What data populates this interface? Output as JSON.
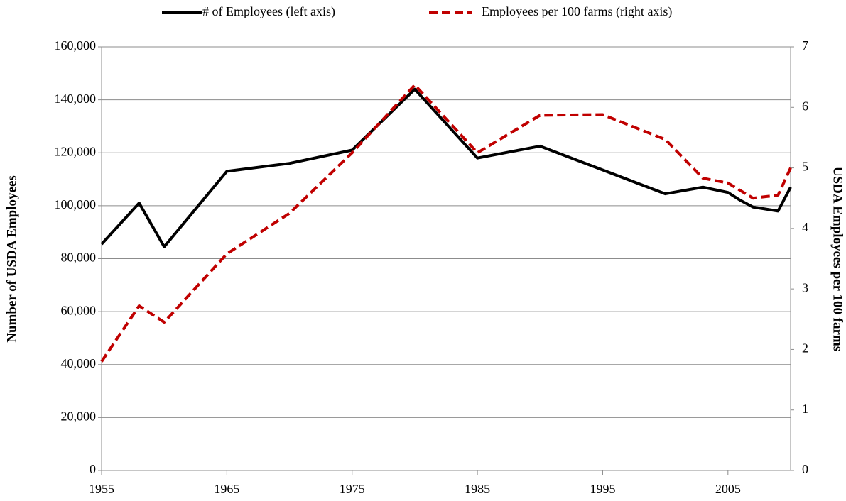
{
  "chart_data": {
    "type": "line",
    "xlabel": null,
    "ylabel": "Number of USDA Employees",
    "y2label": "USDA Employees per 100 farms",
    "xlim": [
      1955,
      2010
    ],
    "xticks": [
      1955,
      1965,
      1975,
      1985,
      1995,
      2005
    ],
    "ylim": [
      0,
      160000
    ],
    "yticks": [
      0,
      {
        "value": 20000,
        "label": "20,000"
      },
      {
        "value": 40000,
        "label": "40,000"
      },
      {
        "value": 60000,
        "label": "60,000"
      },
      {
        "value": 80000,
        "label": "80,000"
      },
      {
        "value": 100000,
        "label": "100,000"
      },
      {
        "value": 120000,
        "label": "120,000"
      },
      {
        "value": 140000,
        "label": "140,000"
      },
      {
        "value": 160000,
        "label": "160,000"
      }
    ],
    "y2lim": [
      0,
      7
    ],
    "y2ticks": [
      0,
      1,
      2,
      3,
      4,
      5,
      6,
      7
    ],
    "grid": true,
    "legend": "top",
    "series": [
      {
        "name": "# of Employees (left axis)",
        "color": "#000000",
        "axis": "y",
        "x": [
          1955,
          1958,
          1960,
          1965,
          1970,
          1975,
          1980,
          1985,
          1990,
          1995,
          2000,
          2003,
          2005,
          2006,
          2007,
          2009,
          2010
        ],
        "values": [
          85500,
          101000,
          84500,
          113000,
          116000,
          121000,
          144000,
          118000,
          122500,
          113500,
          104500,
          107000,
          105000,
          102000,
          99500,
          98000,
          107000
        ]
      },
      {
        "name": "Employees per 100 farms (right axis)",
        "color": "#c00000",
        "axis": "y2",
        "dashed": true,
        "x": [
          1955,
          1958,
          1960,
          1965,
          1970,
          1975,
          1980,
          1985,
          1990,
          1995,
          2000,
          2003,
          2005,
          2007,
          2009,
          2010
        ],
        "values": [
          1.8,
          2.72,
          2.45,
          3.58,
          4.25,
          5.25,
          6.37,
          5.25,
          5.87,
          5.88,
          5.47,
          4.83,
          4.75,
          4.5,
          4.55,
          5.0
        ]
      }
    ]
  }
}
